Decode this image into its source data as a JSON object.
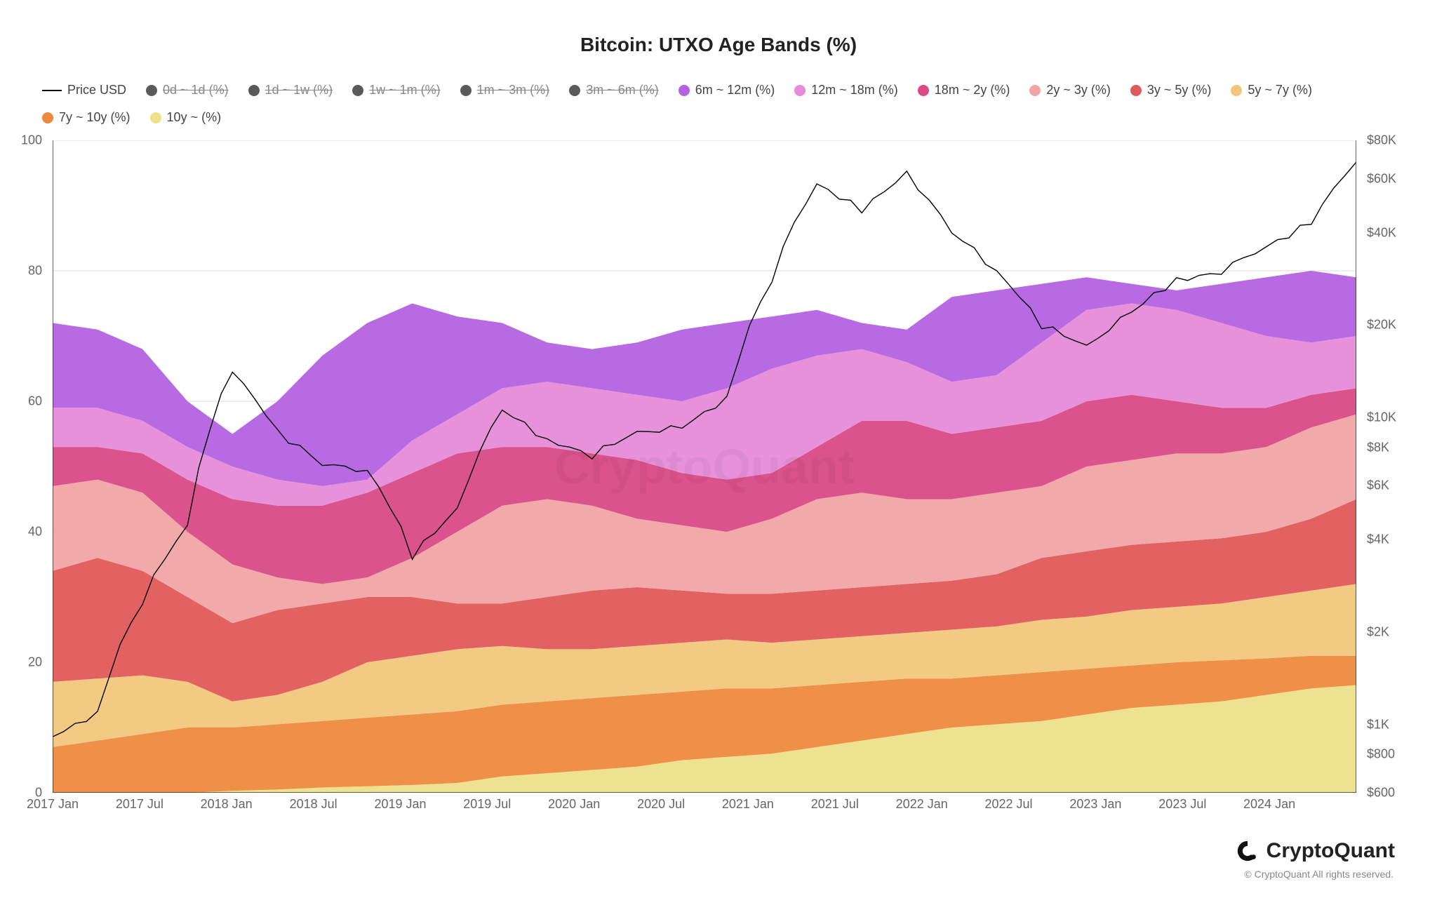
{
  "chart": {
    "type": "stacked-area + line (dual y-axis)",
    "title": "Bitcoin: UTXO Age Bands (%)",
    "title_fontsize": 28,
    "background_color": "#ffffff",
    "grid_color": "#dddddd",
    "axis_color": "#333333",
    "watermark_text": "CryptoQuant",
    "watermark_color": "rgba(0,0,0,0.04)",
    "x_axis": {
      "type": "time",
      "range": [
        "2017-01",
        "2024-04"
      ],
      "tick_labels": [
        "2017 Jan",
        "2017 Jul",
        "2018 Jan",
        "2018 Jul",
        "2019 Jan",
        "2019 Jul",
        "2020 Jan",
        "2020 Jul",
        "2021 Jan",
        "2021 Jul",
        "2022 Jan",
        "2022 Jul",
        "2023 Jan",
        "2023 Jul",
        "2024 Jan"
      ],
      "tick_positions_pct": [
        0,
        6.67,
        13.33,
        20.0,
        26.67,
        33.33,
        40.0,
        46.67,
        53.33,
        60.0,
        66.67,
        73.33,
        80.0,
        86.67,
        93.33
      ],
      "label_fontsize": 18
    },
    "y_left": {
      "label": "",
      "min": 0,
      "max": 100,
      "ticks": [
        0,
        20,
        40,
        60,
        80,
        100
      ],
      "label_fontsize": 18,
      "linear": true
    },
    "y_right": {
      "label": "",
      "scale": "log",
      "min": 600,
      "max": 80000,
      "ticks": [
        600,
        800,
        1000,
        2000,
        4000,
        6000,
        8000,
        10000,
        20000,
        40000,
        60000,
        80000
      ],
      "tick_labels": [
        "$600",
        "$800",
        "$1K",
        "$2K",
        "$4K",
        "$6K",
        "$8K",
        "$10K",
        "$20K",
        "$40K",
        "$60K",
        "$80K"
      ],
      "label_fontsize": 18
    },
    "legend_items": [
      {
        "label": "Price USD",
        "type": "line",
        "color": "#000000",
        "disabled": false
      },
      {
        "label": "0d ~ 1d (%)",
        "type": "dot",
        "color": "#5a5a5a",
        "disabled": true
      },
      {
        "label": "1d ~ 1w (%)",
        "type": "dot",
        "color": "#5a5a5a",
        "disabled": true
      },
      {
        "label": "1w ~ 1m (%)",
        "type": "dot",
        "color": "#5a5a5a",
        "disabled": true
      },
      {
        "label": "1m ~ 3m (%)",
        "type": "dot",
        "color": "#5a5a5a",
        "disabled": true
      },
      {
        "label": "3m ~ 6m (%)",
        "type": "dot",
        "color": "#5a5a5a",
        "disabled": true
      },
      {
        "label": "6m ~ 12m (%)",
        "type": "dot",
        "color": "#b362e0",
        "disabled": false
      },
      {
        "label": "12m ~ 18m (%)",
        "type": "dot",
        "color": "#e58bd8",
        "disabled": false
      },
      {
        "label": "18m ~ 2y (%)",
        "type": "dot",
        "color": "#d94a86",
        "disabled": false
      },
      {
        "label": "2y ~ 3y (%)",
        "type": "dot",
        "color": "#f0a4a4",
        "disabled": false
      },
      {
        "label": "3y ~ 5y (%)",
        "type": "dot",
        "color": "#e05a5a",
        "disabled": false
      },
      {
        "label": "5y ~ 7y (%)",
        "type": "dot",
        "color": "#f2c77d",
        "disabled": false
      },
      {
        "label": "7y ~ 10y (%)",
        "type": "dot",
        "color": "#ed8a3d",
        "disabled": false
      },
      {
        "label": "10y ~ (%)",
        "type": "dot",
        "color": "#ede08a",
        "disabled": false
      }
    ],
    "bands_stack_order_bottom_to_top": [
      "10y",
      "7y_10y",
      "5y_7y",
      "3y_5y",
      "2y_3y",
      "18m_2y",
      "12m_18m",
      "6m_12m"
    ],
    "band_colors": {
      "10y": "#ede08a",
      "7y_10y": "#ed8a3d",
      "5y_7y": "#f2c77d",
      "3y_5y": "#e05a5a",
      "2y_3y": "#f0a4a4",
      "18m_2y": "#d94a86",
      "12m_18m": "#e58bd8",
      "6m_12m": "#b362e0"
    },
    "data": {
      "x_months": [
        0,
        3,
        6,
        9,
        12,
        15,
        18,
        21,
        24,
        27,
        30,
        33,
        36,
        39,
        42,
        45,
        48,
        51,
        54,
        57,
        60,
        63,
        66,
        69,
        72,
        75,
        78,
        81,
        84,
        87
      ],
      "cumulative_pct": {
        "10y": [
          0,
          0,
          0,
          0,
          0.3,
          0.5,
          0.8,
          1,
          1.2,
          1.5,
          2.5,
          3,
          3.5,
          4,
          5,
          5.5,
          6,
          7,
          8,
          9,
          10,
          10.5,
          11,
          12,
          13,
          13.5,
          14,
          15,
          16,
          16.5
        ],
        "7y_10y": [
          7,
          8,
          9,
          10,
          10,
          10.5,
          11,
          11.5,
          12,
          12.5,
          13.5,
          14,
          14.5,
          15,
          15.5,
          16,
          16,
          16.5,
          17,
          17.5,
          17.5,
          18,
          18.5,
          19,
          19.5,
          20,
          20.3,
          20.6,
          21,
          21
        ],
        "5y_7y": [
          17,
          17.5,
          18,
          17,
          14,
          15,
          17,
          20,
          21,
          22,
          22.5,
          22,
          22,
          22.5,
          23,
          23.5,
          23,
          23.5,
          24,
          24.5,
          25,
          25.5,
          26.5,
          27,
          28,
          28.5,
          29,
          30,
          31,
          32
        ],
        "3y_5y": [
          34,
          36,
          34,
          30,
          26,
          28,
          29,
          30,
          30,
          29,
          29,
          30,
          31,
          31.5,
          31,
          30.5,
          30.5,
          31,
          31.5,
          32,
          32.5,
          33.5,
          36,
          37,
          38,
          38.5,
          39,
          40,
          42,
          45
        ],
        "2y_3y": [
          47,
          48,
          46,
          40,
          35,
          33,
          32,
          33,
          36,
          40,
          44,
          45,
          44,
          42,
          41,
          40,
          42,
          45,
          46,
          45,
          45,
          46,
          47,
          50,
          51,
          52,
          52,
          53,
          56,
          58
        ],
        "18m_2y": [
          53,
          53,
          52,
          48,
          45,
          44,
          44,
          46,
          49,
          52,
          53,
          53,
          52,
          51,
          49,
          48,
          49,
          53,
          57,
          57,
          55,
          56,
          57,
          60,
          61,
          60,
          59,
          59,
          61,
          62
        ],
        "12m_18m": [
          59,
          59,
          57,
          53,
          50,
          48,
          47,
          48,
          54,
          58,
          62,
          63,
          62,
          61,
          60,
          62,
          65,
          67,
          68,
          66,
          63,
          64,
          69,
          74,
          75,
          74,
          72,
          70,
          69,
          70
        ],
        "6m_12m": [
          72,
          71,
          68,
          60,
          55,
          60,
          67,
          72,
          75,
          73,
          72,
          69,
          68,
          69,
          71,
          72,
          73,
          74,
          72,
          71,
          76,
          77,
          78,
          79,
          78,
          77,
          78,
          79,
          80,
          79
        ]
      },
      "price_usd": [
        900,
        1100,
        2500,
        4500,
        14000,
        9000,
        7000,
        6800,
        3500,
        5000,
        10500,
        8500,
        7500,
        9000,
        9200,
        11500,
        28000,
        58000,
        47000,
        62000,
        40000,
        30000,
        20000,
        17000,
        22000,
        28000,
        30000,
        36000,
        43000,
        68000
      ]
    },
    "line_style": {
      "price": {
        "color": "#000000",
        "width": 1.4
      }
    },
    "area_opacity": 0.95
  },
  "footer": {
    "brand": "CryptoQuant",
    "copyright": "© CryptoQuant All rights reserved."
  }
}
